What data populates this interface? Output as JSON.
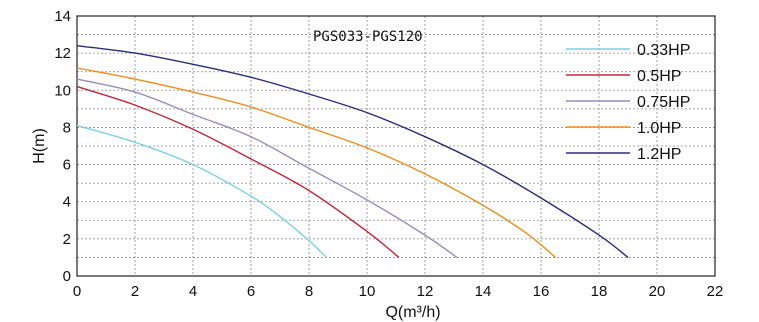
{
  "chart_data": {
    "type": "line",
    "title": "PGS033-PGS120",
    "xlabel": "Q(m³/h)",
    "ylabel": "H(m)",
    "xlim": [
      0,
      22
    ],
    "ylim": [
      0,
      14
    ],
    "x_ticks": [
      0,
      2,
      4,
      6,
      8,
      10,
      12,
      14,
      16,
      18,
      20,
      22
    ],
    "y_ticks": [
      0,
      2,
      4,
      6,
      8,
      10,
      12,
      14
    ],
    "grid": true,
    "legend_position": "top-right",
    "series": [
      {
        "name": "0.33HP",
        "color": "#7fd0e6",
        "points": [
          [
            0,
            8.1
          ],
          [
            2,
            7.2
          ],
          [
            4,
            6.0
          ],
          [
            6,
            4.3
          ],
          [
            7,
            3.2
          ],
          [
            8,
            1.9
          ],
          [
            8.6,
            1.0
          ]
        ]
      },
      {
        "name": "0.5HP",
        "color": "#c0283a",
        "points": [
          [
            0,
            10.2
          ],
          [
            2,
            9.2
          ],
          [
            4,
            7.9
          ],
          [
            6,
            6.3
          ],
          [
            8,
            4.6
          ],
          [
            10,
            2.4
          ],
          [
            11.1,
            1.0
          ]
        ]
      },
      {
        "name": "0.75HP",
        "color": "#9a8cc0",
        "points": [
          [
            0,
            10.6
          ],
          [
            2,
            9.9
          ],
          [
            4,
            8.7
          ],
          [
            6,
            7.5
          ],
          [
            8,
            5.8
          ],
          [
            10,
            4.1
          ],
          [
            12,
            2.2
          ],
          [
            13.1,
            1.0
          ]
        ]
      },
      {
        "name": "1.0HP",
        "color": "#ef8d1a",
        "points": [
          [
            0,
            11.2
          ],
          [
            2,
            10.6
          ],
          [
            4,
            9.9
          ],
          [
            6,
            9.1
          ],
          [
            8,
            8.0
          ],
          [
            10,
            6.9
          ],
          [
            12,
            5.5
          ],
          [
            14,
            3.8
          ],
          [
            15.5,
            2.3
          ],
          [
            16.5,
            1.0
          ]
        ]
      },
      {
        "name": "1.2HP",
        "color": "#2a2e7a",
        "points": [
          [
            0,
            12.4
          ],
          [
            2,
            12.0
          ],
          [
            4,
            11.4
          ],
          [
            6,
            10.7
          ],
          [
            8,
            9.8
          ],
          [
            10,
            8.8
          ],
          [
            12,
            7.5
          ],
          [
            14,
            6.0
          ],
          [
            16,
            4.2
          ],
          [
            18,
            2.2
          ],
          [
            19,
            1.0
          ]
        ]
      }
    ]
  }
}
